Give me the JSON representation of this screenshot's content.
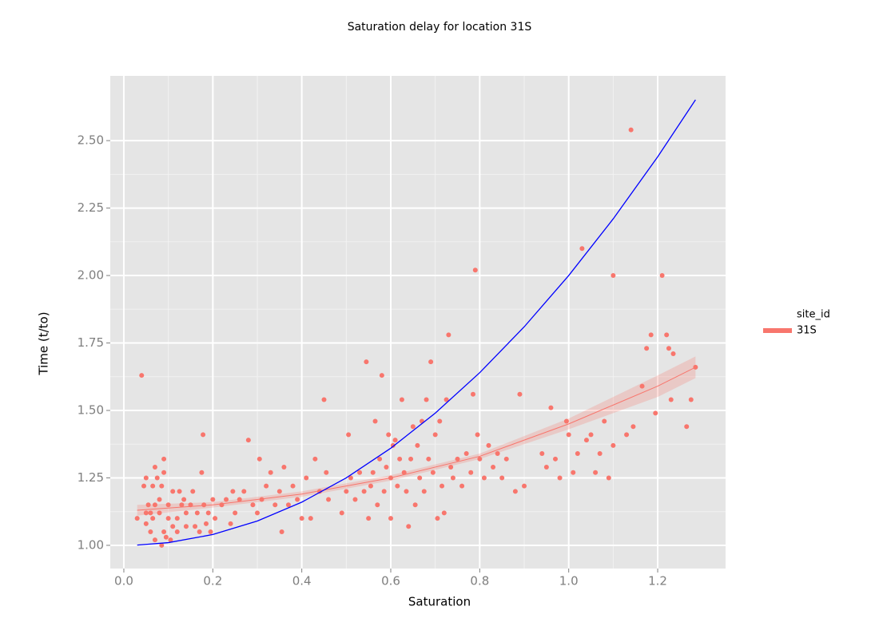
{
  "chart_data": {
    "type": "scatter",
    "title": "Saturation delay for location 31S",
    "x_label": "Saturation",
    "y_label": "Time (t/to)",
    "legend_title": "site_id",
    "legend_position": "right",
    "grid": true,
    "xlim": [
      -0.0305,
      1.3526
    ],
    "ylim": [
      0.914,
      2.74
    ],
    "xticks": [
      {
        "value": 0,
        "label": "0.0"
      },
      0.2,
      0.4,
      0.6,
      0.8,
      {
        "value": 1,
        "label": "1.0"
      },
      1.2
    ],
    "yticks": [
      {
        "value": 1,
        "label": "1.00"
      },
      1.25,
      {
        "value": 1.5,
        "label": "1.50"
      },
      1.75,
      {
        "value": 2,
        "label": "2.00"
      },
      2.25,
      {
        "value": 2.5,
        "label": "2.50"
      }
    ],
    "series": [
      {
        "name": "31S",
        "color": "#f8766d",
        "x": [
          0.03,
          0.04,
          0.045,
          0.05,
          0.05,
          0.05,
          0.055,
          0.06,
          0.06,
          0.065,
          0.065,
          0.07,
          0.07,
          0.07,
          0.075,
          0.08,
          0.08,
          0.085,
          0.085,
          0.09,
          0.09,
          0.09,
          0.095,
          0.1,
          0.1,
          0.105,
          0.11,
          0.11,
          0.12,
          0.12,
          0.125,
          0.13,
          0.135,
          0.14,
          0.14,
          0.15,
          0.155,
          0.16,
          0.165,
          0.17,
          0.175,
          0.178,
          0.18,
          0.185,
          0.19,
          0.195,
          0.2,
          0.205,
          0.22,
          0.23,
          0.24,
          0.245,
          0.25,
          0.26,
          0.27,
          0.28,
          0.29,
          0.3,
          0.305,
          0.31,
          0.32,
          0.33,
          0.34,
          0.35,
          0.355,
          0.36,
          0.37,
          0.38,
          0.39,
          0.4,
          0.41,
          0.42,
          0.43,
          0.44,
          0.45,
          0.455,
          0.46,
          0.49,
          0.5,
          0.505,
          0.51,
          0.52,
          0.53,
          0.54,
          0.545,
          0.55,
          0.555,
          0.56,
          0.565,
          0.57,
          0.575,
          0.58,
          0.585,
          0.59,
          0.595,
          0.6,
          0.6,
          0.605,
          0.61,
          0.615,
          0.62,
          0.625,
          0.63,
          0.635,
          0.64,
          0.645,
          0.65,
          0.655,
          0.66,
          0.665,
          0.67,
          0.675,
          0.68,
          0.685,
          0.69,
          0.695,
          0.7,
          0.705,
          0.71,
          0.715,
          0.72,
          0.725,
          0.73,
          0.735,
          0.74,
          0.75,
          0.76,
          0.77,
          0.78,
          0.785,
          0.79,
          0.795,
          0.8,
          0.81,
          0.82,
          0.83,
          0.84,
          0.85,
          0.86,
          0.88,
          0.89,
          0.9,
          0.94,
          0.95,
          0.96,
          0.97,
          0.98,
          0.995,
          1.0,
          1.01,
          1.02,
          1.03,
          1.04,
          1.05,
          1.06,
          1.07,
          1.08,
          1.09,
          1.1,
          1.1,
          1.13,
          1.14,
          1.145,
          1.165,
          1.175,
          1.185,
          1.195,
          1.21,
          1.22,
          1.225,
          1.23,
          1.235,
          1.265,
          1.275,
          1.285
        ],
        "values": [
          1.1,
          1.63,
          1.22,
          1.25,
          1.12,
          1.08,
          1.15,
          1.12,
          1.05,
          1.22,
          1.1,
          1.29,
          1.15,
          1.02,
          1.25,
          1.17,
          1.12,
          1.22,
          1.0,
          1.32,
          1.05,
          1.27,
          1.03,
          1.15,
          1.1,
          1.02,
          1.07,
          1.2,
          1.1,
          1.05,
          1.2,
          1.15,
          1.17,
          1.07,
          1.12,
          1.15,
          1.2,
          1.07,
          1.12,
          1.05,
          1.27,
          1.41,
          1.15,
          1.08,
          1.12,
          1.05,
          1.17,
          1.1,
          1.15,
          1.17,
          1.08,
          1.2,
          1.12,
          1.17,
          1.2,
          1.39,
          1.15,
          1.12,
          1.32,
          1.17,
          1.22,
          1.27,
          1.15,
          1.2,
          1.05,
          1.29,
          1.15,
          1.22,
          1.17,
          1.1,
          1.25,
          1.1,
          1.32,
          1.2,
          1.54,
          1.27,
          1.17,
          1.12,
          1.2,
          1.41,
          1.25,
          1.17,
          1.27,
          1.2,
          1.68,
          1.1,
          1.22,
          1.27,
          1.46,
          1.15,
          1.32,
          1.63,
          1.2,
          1.29,
          1.41,
          1.1,
          1.25,
          1.37,
          1.39,
          1.22,
          1.32,
          1.54,
          1.27,
          1.2,
          1.07,
          1.32,
          1.44,
          1.15,
          1.37,
          1.25,
          1.46,
          1.2,
          1.54,
          1.32,
          1.68,
          1.27,
          1.41,
          1.1,
          1.46,
          1.22,
          1.12,
          1.54,
          1.78,
          1.29,
          1.25,
          1.32,
          1.22,
          1.34,
          1.27,
          1.56,
          2.02,
          1.41,
          1.32,
          1.25,
          1.37,
          1.29,
          1.34,
          1.25,
          1.32,
          1.2,
          1.56,
          1.22,
          1.34,
          1.29,
          1.51,
          1.32,
          1.25,
          1.46,
          1.41,
          1.27,
          1.34,
          2.1,
          1.39,
          1.41,
          1.27,
          1.34,
          1.46,
          1.25,
          2.0,
          1.37,
          1.41,
          2.54,
          1.44,
          1.59,
          1.73,
          1.78,
          1.49,
          2.0,
          1.78,
          1.73,
          1.54,
          1.71,
          1.44,
          1.54,
          1.66
        ]
      }
    ],
    "fit": {
      "color": "#f8766d",
      "x": [
        0.03,
        0.2,
        0.4,
        0.6,
        0.8,
        1.0,
        1.1,
        1.2,
        1.285
      ],
      "values": [
        1.13,
        1.15,
        1.19,
        1.25,
        1.33,
        1.45,
        1.52,
        1.59,
        1.66
      ],
      "lower": [
        1.11,
        1.14,
        1.18,
        1.24,
        1.32,
        1.43,
        1.49,
        1.55,
        1.62
      ],
      "upper": [
        1.15,
        1.16,
        1.2,
        1.26,
        1.34,
        1.47,
        1.55,
        1.63,
        1.7
      ]
    },
    "reference": {
      "color": "#0000ff",
      "x": [
        0.03,
        0.1,
        0.2,
        0.3,
        0.4,
        0.5,
        0.6,
        0.7,
        0.8,
        0.9,
        1.0,
        1.1,
        1.2,
        1.285
      ],
      "values": [
        1.0009,
        1.01,
        1.04,
        1.09,
        1.16,
        1.25,
        1.36,
        1.49,
        1.64,
        1.81,
        2.0,
        2.21,
        2.44,
        2.651225
      ]
    }
  }
}
